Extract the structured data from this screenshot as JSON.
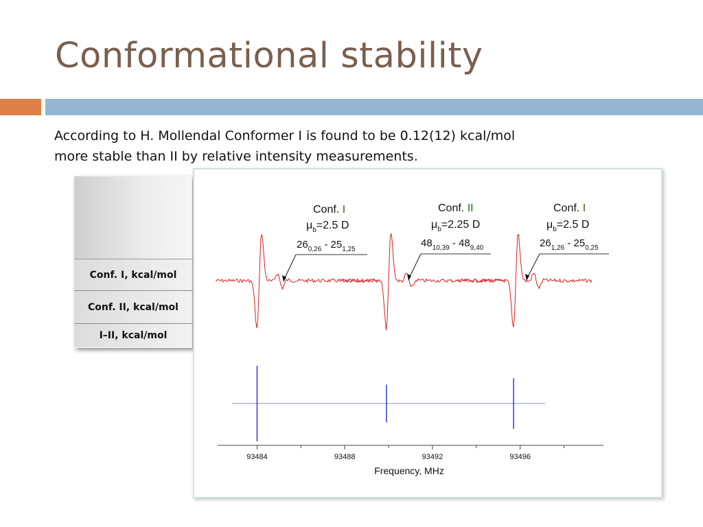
{
  "slide": {
    "title": "Conformational stability",
    "body_line1": "According to H. Mollendal Conformer I is found to be 0.12(12) kcal/mol",
    "body_line2": "more stable than II by relative intensity measurements."
  },
  "table": {
    "rows": [
      {
        "label": "Conf. I, kcal/mol"
      },
      {
        "label": "Conf. II, kcal/mol"
      },
      {
        "label": "I–II, kcal/mol"
      }
    ]
  },
  "colors": {
    "title": "#7a5f4e",
    "accent_orange": "#dd8047",
    "accent_blue": "#94b6d2",
    "spectrum": "#d62020",
    "stick": "#2a2ad0"
  },
  "figure": {
    "annotations": [
      {
        "conf_prefix": "Conf. ",
        "conf_num": "I",
        "mu": "μ",
        "mu_sub": "b",
        "mu_val": "=2.5 D",
        "t1": "26",
        "s1": "0,26",
        "dash": " - ",
        "t2": "25",
        "s2": "1,25"
      },
      {
        "conf_prefix": "Conf. ",
        "conf_num": "II",
        "mu": "μ",
        "mu_sub": "b",
        "mu_val": "=2.25 D",
        "t1": "48",
        "s1": "10,39",
        "dash": " - ",
        "t2": "48",
        "s2": "9,40"
      },
      {
        "conf_prefix": "Conf. ",
        "conf_num": "I",
        "mu": "μ",
        "mu_sub": "b",
        "mu_val": "=2.5 D",
        "t1": "26",
        "s1": "1,26",
        "dash": " - ",
        "t2": "25",
        "s2": "0,25"
      }
    ]
  },
  "chart_data": {
    "type": "line",
    "xlabel": "Frequency, MHz",
    "ylabel": "",
    "x_ticks": [
      "93484",
      "93488",
      "93492",
      "93496"
    ],
    "x_tick_values": [
      93484,
      93488,
      93492,
      93496
    ],
    "xlim": [
      93482.2,
      93499.8
    ],
    "series": [
      {
        "kind": "spectrum-lines",
        "centers": [
          93484.1,
          93490.0,
          93495.8
        ]
      },
      {
        "kind": "stick-spectrum",
        "x": [
          93484.0,
          93489.9,
          93495.7
        ],
        "relative_heights": [
          1.0,
          0.5,
          0.67
        ]
      }
    ]
  }
}
